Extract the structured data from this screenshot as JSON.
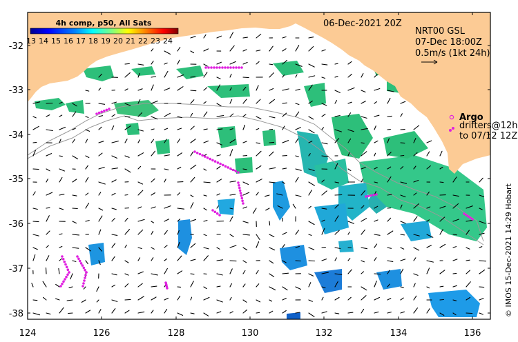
{
  "map": {
    "date_label": "06-Dec-2021 20Z",
    "product_line1": "NRT00 GSL",
    "product_line2": "07-Dec 18:00Z",
    "scale_label": "0.5m/s (1kt 24h)",
    "argo_label": "Argo",
    "drifters_line1": "drifters@12h",
    "drifters_line2": "to 07/12 12Z",
    "credit": "© IMOS 15-Dec-2021 14:29 Hobart",
    "lon_ticks": [
      "124",
      "126",
      "128",
      "130",
      "132",
      "134",
      "136"
    ],
    "lat_ticks": [
      "-32",
      "-33",
      "-34",
      "-35",
      "-36",
      "-37",
      "-38"
    ],
    "lon_range": [
      124,
      136.5
    ],
    "lat_range": [
      -38.1,
      -31.4
    ],
    "colors": {
      "land": "#FCCB95",
      "ocean": "#FFFFFF",
      "vectors": "#000000",
      "drifter": "#E020E0",
      "isobath": "#9A9A9A"
    }
  },
  "colorbar": {
    "title": "4h comp, p50, All Sats",
    "tick_labels": [
      "13",
      "14",
      "15",
      "16",
      "17",
      "18",
      "19",
      "20",
      "21",
      "22",
      "23",
      "24"
    ],
    "range": [
      13,
      25
    ],
    "palette": [
      "#00008F",
      "#0000FF",
      "#0080FF",
      "#00FFFF",
      "#80FF80",
      "#FFFF00",
      "#FF8000",
      "#FF0000",
      "#800000"
    ]
  }
}
